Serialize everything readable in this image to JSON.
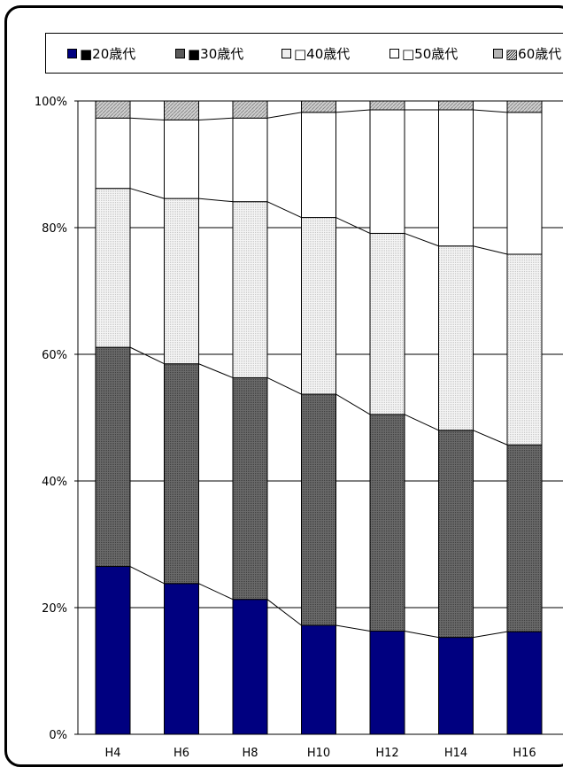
{
  "chart_data": {
    "type": "bar",
    "stacked": true,
    "percent": true,
    "categories": [
      "H4",
      "H6",
      "H8",
      "H10",
      "H12",
      "H14",
      "H16"
    ],
    "series": [
      {
        "name": "■20歳代",
        "values": [
          26.5,
          23.8,
          21.3,
          17.2,
          16.3,
          15.3,
          16.2
        ]
      },
      {
        "name": "■30歳代",
        "values": [
          34.6,
          34.7,
          35.0,
          36.5,
          34.2,
          32.7,
          29.5
        ]
      },
      {
        "name": "□40歳代",
        "values": [
          25.1,
          26.1,
          27.8,
          27.9,
          28.6,
          29.1,
          30.1
        ]
      },
      {
        "name": "□50歳代",
        "values": [
          11.1,
          12.4,
          13.2,
          16.6,
          19.5,
          21.5,
          22.4
        ]
      },
      {
        "name": "▨60歳代",
        "values": [
          2.7,
          3.0,
          2.7,
          1.8,
          1.4,
          1.4,
          1.8
        ]
      }
    ],
    "y_ticks": [
      "0%",
      "20%",
      "40%",
      "60%",
      "80%",
      "100%"
    ],
    "ylim": [
      0,
      100
    ],
    "grid": true,
    "legend_position": "top",
    "series_lines": true,
    "colors": {
      "20s": "#000080",
      "30s": "#5a5a5a",
      "40s": "#eeeeee",
      "50s": "#ffffff",
      "60s": "#b4b4b4",
      "stroke": "#000000"
    }
  }
}
